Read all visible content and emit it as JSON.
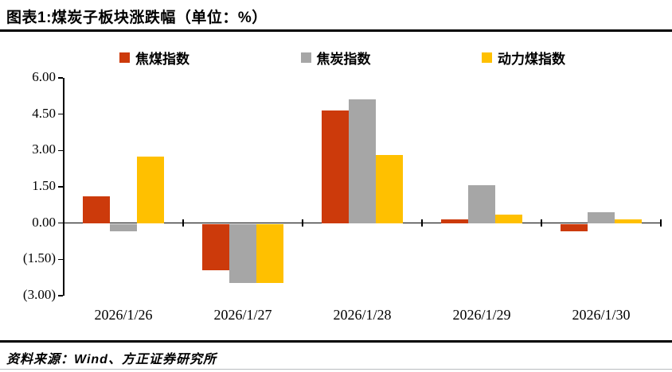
{
  "header": {
    "title": "图表1:煤炭子板块涨跌幅（单位：%）"
  },
  "chart_data": {
    "type": "bar",
    "title": "图表1:煤炭子板块涨跌幅（单位：%）",
    "unit": "%",
    "categories": [
      "2026/1/26",
      "2026/1/27",
      "2026/1/28",
      "2026/1/29",
      "2026/1/30"
    ],
    "series": [
      {
        "name": "焦煤指数",
        "color": "#CC3A0B",
        "values": [
          1.1,
          -1.9,
          4.65,
          0.15,
          -0.3
        ]
      },
      {
        "name": "焦炭指数",
        "color": "#A6A6A6",
        "values": [
          -0.3,
          -2.45,
          5.1,
          1.55,
          0.45
        ]
      },
      {
        "name": "动力煤指数",
        "color": "#FFC000",
        "values": [
          2.75,
          -2.45,
          2.8,
          0.35,
          0.15
        ]
      }
    ],
    "y_ticks": [
      {
        "value": 6,
        "label": "6.00"
      },
      {
        "value": 4.5,
        "label": "4.50"
      },
      {
        "value": 3,
        "label": "3.00"
      },
      {
        "value": 1.5,
        "label": "1.50"
      },
      {
        "value": 0,
        "label": "0.00"
      },
      {
        "value": -1.5,
        "label": "(1.50)"
      },
      {
        "value": -3,
        "label": "(3.00)"
      }
    ],
    "ylim": [
      -3,
      6
    ],
    "grid": false,
    "legend_position": "top"
  },
  "footer": {
    "source": "资料来源：Wind、方正证券研究所"
  }
}
